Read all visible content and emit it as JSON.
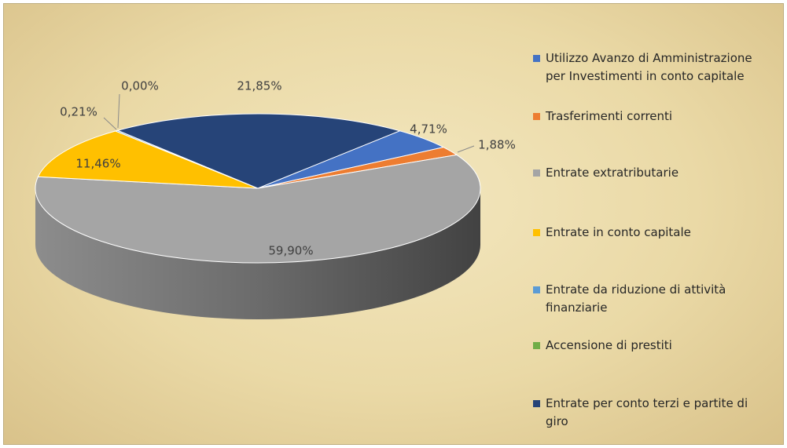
{
  "chart_data": {
    "type": "pie3d",
    "categories": [
      "Utilizzo Avanzo di Amministrazione per Investimenti in conto capitale",
      "Trasferimenti correnti",
      "Entrate extratributarie",
      "Entrate in conto capitale",
      "Entrate da riduzione di attività finanziarie",
      "Accensione di prestiti",
      "Entrate per conto terzi e partite di giro"
    ],
    "values": [
      4.71,
      1.88,
      59.9,
      11.46,
      0.21,
      0.0,
      21.85
    ],
    "value_labels": [
      "4,71%",
      "1,88%",
      "59,90%",
      "11,46%",
      "0,21%",
      "0,00%",
      "21,85%"
    ],
    "colors": [
      "#4472c4",
      "#ed7d31",
      "#a5a5a5",
      "#ffc000",
      "#5b9bd5",
      "#70ad47",
      "#264478"
    ],
    "legend": "right"
  }
}
